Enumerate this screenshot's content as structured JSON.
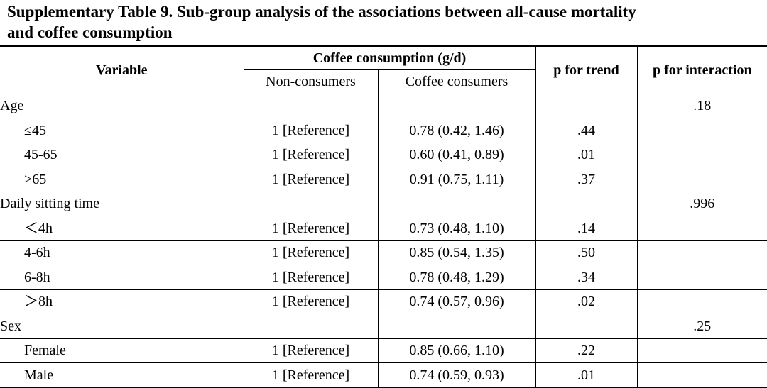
{
  "title": {
    "line1": "Supplementary Table 9. Sub-group analysis of the associations between all-cause mortality",
    "line2": "and coffee consumption"
  },
  "header": {
    "variable": "Variable",
    "coffee_group": "Coffee consumption (g/d)",
    "non_consumers": "Non-consumers",
    "coffee_consumers": "Coffee consumers",
    "p_trend": "p for trend",
    "p_interaction": "p for interaction"
  },
  "rows": [
    {
      "variable": "Age",
      "non": "",
      "coffee": "",
      "p_trend": "",
      "p_interaction": ".18"
    },
    {
      "variable": "≤45",
      "non": "1 [Reference]",
      "coffee": "0.78 (0.42, 1.46)",
      "p_trend": ".44",
      "p_interaction": ""
    },
    {
      "variable": "45-65",
      "non": "1 [Reference]",
      "coffee": "0.60 (0.41, 0.89)",
      "p_trend": ".01",
      "p_interaction": ""
    },
    {
      "variable": ">65",
      "non": "1 [Reference]",
      "coffee": "0.91 (0.75, 1.11)",
      "p_trend": ".37",
      "p_interaction": ""
    },
    {
      "variable": "Daily sitting time",
      "non": "",
      "coffee": "",
      "p_trend": "",
      "p_interaction": ".996"
    },
    {
      "variable": "＜4h",
      "non": "1 [Reference]",
      "coffee": "0.73 (0.48, 1.10)",
      "p_trend": ".14",
      "p_interaction": ""
    },
    {
      "variable": "4-6h",
      "non": "1 [Reference]",
      "coffee": "0.85 (0.54, 1.35)",
      "p_trend": ".50",
      "p_interaction": ""
    },
    {
      "variable": "6-8h",
      "non": "1 [Reference]",
      "coffee": "0.78 (0.48, 1.29)",
      "p_trend": ".34",
      "p_interaction": ""
    },
    {
      "variable": "＞8h",
      "non": "1 [Reference]",
      "coffee": "0.74 (0.57, 0.96)",
      "p_trend": ".02",
      "p_interaction": ""
    },
    {
      "variable": "Sex",
      "non": "",
      "coffee": "",
      "p_trend": "",
      "p_interaction": ".25"
    },
    {
      "variable": "Female",
      "non": "1 [Reference]",
      "coffee": "0.85 (0.66, 1.10)",
      "p_trend": ".22",
      "p_interaction": ""
    },
    {
      "variable": "Male",
      "non": "1 [Reference]",
      "coffee": "0.74 (0.59, 0.93)",
      "p_trend": ".01",
      "p_interaction": ""
    }
  ]
}
